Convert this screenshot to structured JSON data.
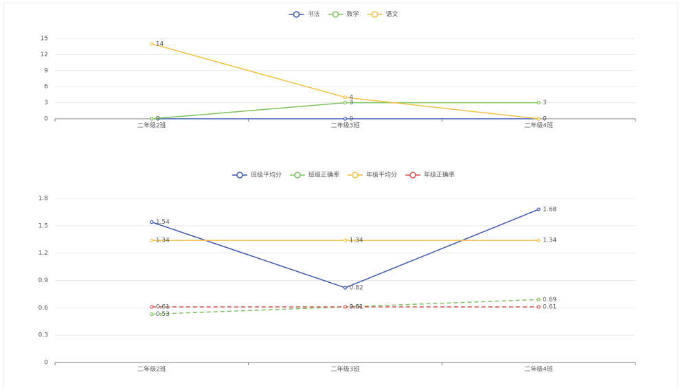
{
  "chart_data": [
    {
      "type": "line",
      "categories": [
        "二年级2班",
        "二年级3班",
        "二年级4班"
      ],
      "series": [
        {
          "name": "书法",
          "color": "#3c57b4",
          "line_style": "solid",
          "values": [
            0,
            0,
            0
          ]
        },
        {
          "name": "数学",
          "color": "#7cc35a",
          "line_style": "solid",
          "values": [
            0,
            3,
            3
          ]
        },
        {
          "name": "语文",
          "color": "#f4c03f",
          "line_style": "solid",
          "values": [
            14,
            4,
            0
          ]
        }
      ],
      "ylim": [
        0,
        15
      ],
      "yticks": [
        0,
        3,
        6,
        9,
        12,
        15
      ],
      "grid": true
    },
    {
      "type": "line",
      "categories": [
        "二年级2班",
        "二年级3班",
        "二年级4班"
      ],
      "series": [
        {
          "name": "班级平均分",
          "color": "#3c57b4",
          "line_style": "solid",
          "values": [
            1.54,
            0.82,
            1.68
          ]
        },
        {
          "name": "班级正确率",
          "color": "#7cc35a",
          "line_style": "dashed",
          "values": [
            0.53,
            0.61,
            0.69
          ]
        },
        {
          "name": "年级平均分",
          "color": "#f4c03f",
          "line_style": "solid",
          "values": [
            1.34,
            1.34,
            1.34
          ]
        },
        {
          "name": "年级正确率",
          "color": "#e0504f",
          "line_style": "dashed",
          "values": [
            0.61,
            0.61,
            0.61
          ]
        }
      ],
      "ylim": [
        0,
        1.8
      ],
      "yticks": [
        0,
        0.3,
        0.6,
        0.9,
        1.2,
        1.5,
        1.8
      ],
      "grid": true
    }
  ]
}
